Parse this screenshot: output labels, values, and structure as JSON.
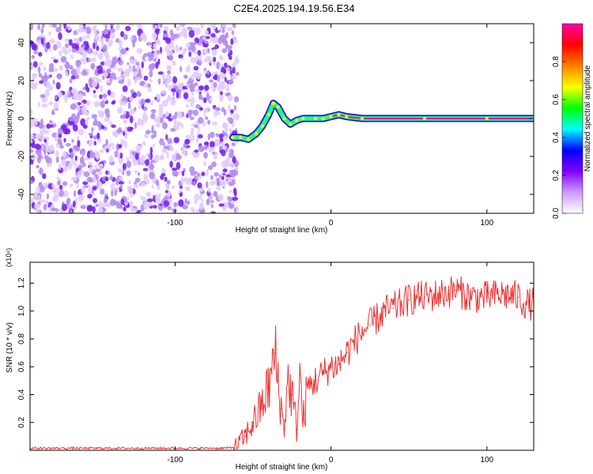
{
  "title": "C2E4.2025.194.19.56.E34",
  "chart_data": [
    {
      "type": "heatmap",
      "xlabel": "Height of straight line (km)",
      "ylabel": "Frequency (Hz)",
      "xlim": [
        -193,
        130
      ],
      "ylim": [
        -50,
        50
      ],
      "x_ticks": [
        -100,
        0,
        100
      ],
      "y_ticks": [
        -40,
        -20,
        0,
        20,
        40
      ],
      "noise_region_x": [
        -193,
        -60
      ],
      "ridge": [
        {
          "x": -63,
          "y": -10
        },
        {
          "x": -58,
          "y": -10
        },
        {
          "x": -53,
          "y": -11
        },
        {
          "x": -48,
          "y": -8
        },
        {
          "x": -44,
          "y": -4
        },
        {
          "x": -40,
          "y": 2
        },
        {
          "x": -37,
          "y": 8
        },
        {
          "x": -34,
          "y": 6
        },
        {
          "x": -30,
          "y": 0
        },
        {
          "x": -26,
          "y": -3
        },
        {
          "x": -22,
          "y": -1
        },
        {
          "x": -18,
          "y": 0
        },
        {
          "x": -10,
          "y": 0
        },
        {
          "x": -5,
          "y": 0
        },
        {
          "x": 0,
          "y": 1
        },
        {
          "x": 5,
          "y": 2
        },
        {
          "x": 10,
          "y": 1
        },
        {
          "x": 20,
          "y": 0
        },
        {
          "x": 60,
          "y": 0
        },
        {
          "x": 100,
          "y": 0
        },
        {
          "x": 130,
          "y": 0
        }
      ],
      "colorbar": {
        "label": "Normalized spectral amplitude",
        "ticks": [
          0.0,
          0.2,
          0.4,
          0.6,
          0.8
        ],
        "range": [
          0,
          1
        ],
        "colors": [
          "#ffffff",
          "#cc99ff",
          "#7f00ff",
          "#0000ff",
          "#00ffff",
          "#00ff00",
          "#ffff00",
          "#ff7f00",
          "#ff0000",
          "#ff00aa"
        ]
      }
    },
    {
      "type": "line",
      "xlabel": "Height of straight line (km)",
      "ylabel": "SNR (10 * v/v)",
      "scale_label": "(x10⁴)",
      "xlim": [
        -193,
        130
      ],
      "ylim": [
        0,
        1.35
      ],
      "x_ticks": [
        -100,
        0,
        100
      ],
      "y_ticks": [
        0.2,
        0.4,
        0.6,
        0.8,
        1.0,
        1.2
      ],
      "line_color": "#ee3333",
      "series": [
        {
          "x": [
            -193,
            -150,
            -100,
            -70,
            -62,
            -55,
            -50,
            -45,
            -40,
            -38,
            -36,
            -34,
            -32,
            -30,
            -28,
            -25,
            -22,
            -20,
            -18,
            -15,
            -10,
            -5,
            0,
            5,
            10,
            15,
            20,
            25,
            30,
            35,
            40,
            45,
            50,
            55,
            60,
            70,
            80,
            90,
            100,
            110,
            120,
            125,
            130
          ],
          "y": [
            0.015,
            0.015,
            0.015,
            0.015,
            0.02,
            0.1,
            0.2,
            0.3,
            0.45,
            0.55,
            0.7,
            0.5,
            0.3,
            0.15,
            0.5,
            0.4,
            0.15,
            0.55,
            0.2,
            0.45,
            0.5,
            0.55,
            0.6,
            0.62,
            0.7,
            0.78,
            0.85,
            0.9,
            0.95,
            1.0,
            1.02,
            1.05,
            1.08,
            1.1,
            1.1,
            1.12,
            1.15,
            1.1,
            1.1,
            1.12,
            1.1,
            1.05,
            1.05
          ]
        }
      ]
    }
  ]
}
